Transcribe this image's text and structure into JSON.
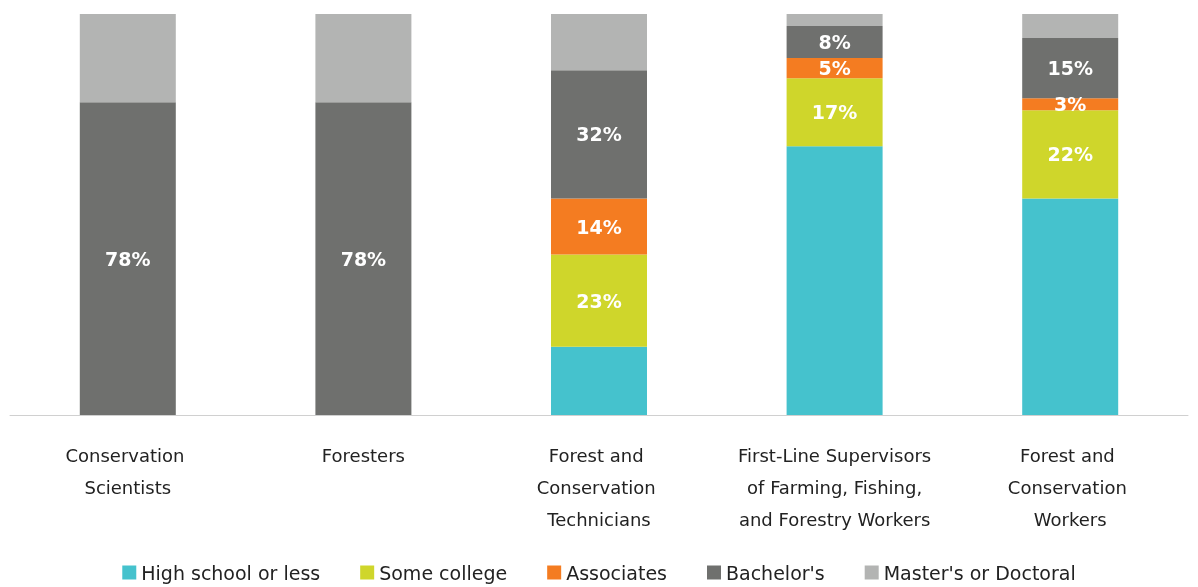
{
  "chart_data": {
    "type": "bar",
    "stacked": true,
    "legend": "bottom",
    "tick_labels": "x",
    "ylim": [
      0,
      100
    ],
    "categories": [
      "Conservation Scientists",
      "Foresters",
      "Forest and Conservation Technicians",
      "First-Line Supervisors of Farming, Fishing, and Forestry Workers",
      "Forest and Conservation Workers"
    ],
    "series": [
      {
        "name": "High school or less",
        "color": "#45c2cd",
        "values": [
          0,
          0,
          17,
          67,
          54
        ],
        "value_labels": [
          null,
          null,
          null,
          null,
          null
        ]
      },
      {
        "name": "Some college",
        "color": "#cfd62b",
        "values": [
          0,
          0,
          23,
          17,
          22
        ],
        "value_labels": [
          null,
          null,
          "23%",
          "17%",
          "22%"
        ]
      },
      {
        "name": "Associates",
        "color": "#f47c21",
        "values": [
          0,
          0,
          14,
          5,
          3
        ],
        "value_labels": [
          null,
          null,
          "14%",
          "5%",
          "3%"
        ]
      },
      {
        "name": "Bachelor's",
        "color": "#6f706e",
        "values": [
          78,
          78,
          32,
          8,
          15
        ],
        "value_labels": [
          "78%",
          "78%",
          "32%",
          "8%",
          "15%"
        ]
      },
      {
        "name": "Master's or Doctoral",
        "color": "#b3b4b3",
        "values": [
          22,
          22,
          14,
          3,
          6
        ],
        "value_labels": [
          null,
          null,
          null,
          null,
          null
        ]
      }
    ]
  }
}
